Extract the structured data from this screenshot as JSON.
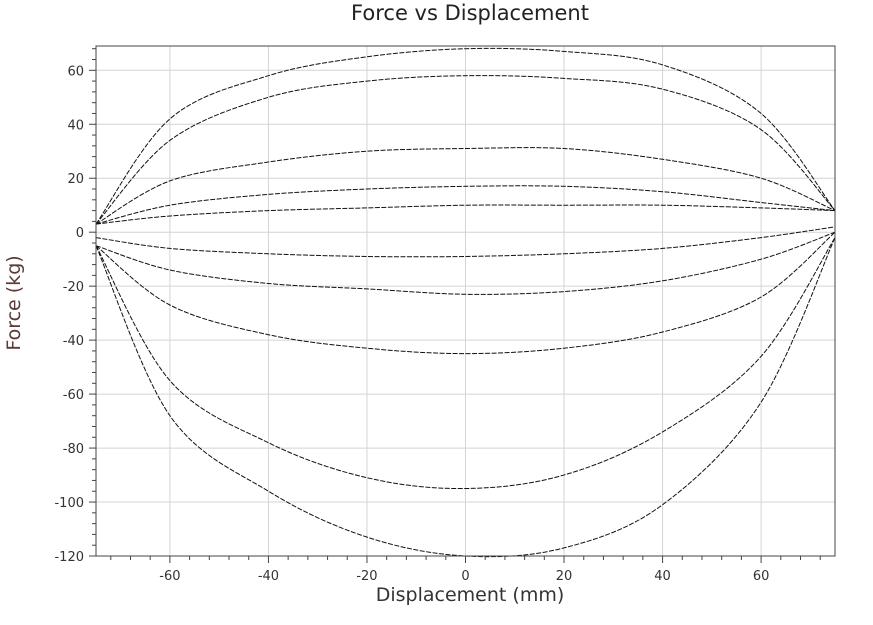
{
  "chart_data": {
    "type": "line",
    "title": "Force vs Displacement",
    "xlabel": "Displacement (mm)",
    "ylabel": "Force (kg)",
    "xlim": [
      -75,
      75
    ],
    "ylim": [
      -120,
      69
    ],
    "xticks": [
      -60,
      -40,
      -20,
      0,
      20,
      40,
      60
    ],
    "yticks": [
      60,
      40,
      20,
      0,
      -20,
      -40,
      -60,
      -80,
      -100,
      -120
    ],
    "grid": true,
    "legend": "none",
    "series": [
      {
        "x": [
          -75,
          -60,
          -40,
          -20,
          0,
          20,
          40,
          60,
          75
        ],
        "y": [
          3,
          42,
          58,
          65,
          68,
          67,
          62,
          44,
          8
        ]
      },
      {
        "x": [
          -75,
          -60,
          -40,
          -20,
          0,
          20,
          40,
          60,
          75
        ],
        "y": [
          3,
          34,
          50,
          56,
          58,
          57,
          53,
          38,
          8
        ]
      },
      {
        "x": [
          -75,
          -60,
          -40,
          -20,
          0,
          20,
          40,
          60,
          75
        ],
        "y": [
          3,
          19,
          26,
          30,
          31,
          31,
          27,
          20,
          8
        ]
      },
      {
        "x": [
          -75,
          -60,
          -40,
          -20,
          0,
          20,
          40,
          60,
          75
        ],
        "y": [
          3,
          10,
          14,
          16,
          17,
          17,
          15,
          11,
          8
        ]
      },
      {
        "x": [
          -75,
          -60,
          -40,
          -20,
          0,
          20,
          40,
          60,
          75
        ],
        "y": [
          3,
          6,
          8,
          9,
          10,
          10,
          10,
          9,
          8
        ]
      },
      {
        "x": [
          -75,
          -60,
          -40,
          -20,
          0,
          20,
          40,
          60,
          75
        ],
        "y": [
          -2,
          -6,
          -8,
          -9,
          -9,
          -8,
          -6,
          -2,
          2
        ]
      },
      {
        "x": [
          -75,
          -60,
          -40,
          -20,
          0,
          20,
          40,
          60,
          75
        ],
        "y": [
          -5,
          -14,
          -19,
          -21,
          -23,
          -22,
          -18,
          -10,
          0
        ]
      },
      {
        "x": [
          -75,
          -60,
          -40,
          -20,
          0,
          20,
          40,
          60,
          75
        ],
        "y": [
          -5,
          -27,
          -38,
          -43,
          -45,
          -43,
          -37,
          -24,
          0
        ]
      },
      {
        "x": [
          -75,
          -60,
          -40,
          -20,
          0,
          20,
          40,
          60,
          75
        ],
        "y": [
          -5,
          -55,
          -78,
          -91,
          -95,
          -90,
          -74,
          -46,
          -2
        ]
      },
      {
        "x": [
          -75,
          -60,
          -40,
          -20,
          0,
          20,
          40,
          60,
          75
        ],
        "y": [
          -5,
          -68,
          -96,
          -113,
          -120,
          -117,
          -101,
          -63,
          -2
        ]
      }
    ]
  }
}
